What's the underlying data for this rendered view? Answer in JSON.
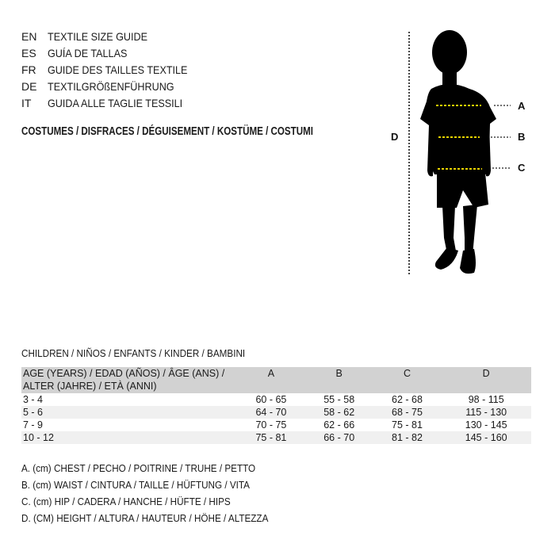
{
  "languages": [
    {
      "code": "EN",
      "label": "TEXTILE SIZE GUIDE"
    },
    {
      "code": "ES",
      "label": "GUÍA DE TALLAS"
    },
    {
      "code": "FR",
      "label": "GUIDE DES TAILLES TEXTILE"
    },
    {
      "code": "DE",
      "label": "TEXTILGRÖßENFÜHRUNG"
    },
    {
      "code": "IT",
      "label": "GUIDA ALLE TAGLIE TESSILI"
    }
  ],
  "heading": "COSTUMES / DISFRACES / DÉGUISEMENT / KOSTÜME / COSTUMI",
  "figure": {
    "labels": {
      "a": "A",
      "b": "B",
      "c": "C",
      "d": "D"
    },
    "measure_line_color": "#e6d200"
  },
  "table": {
    "title": "CHILDREN / NIÑOS / ENFANTS / KINDER / BAMBINI",
    "age_header_line1": "AGE (YEARS) / EDAD (AÑOS) / ÂGE (ANS) /",
    "age_header_line2": "ALTER (JAHRE) / ETÀ (ANNI)",
    "columns": [
      "A",
      "B",
      "C",
      "D"
    ],
    "rows": [
      {
        "age": "3 - 4",
        "a": "60 - 65",
        "b": "55 - 58",
        "c": "62 - 68",
        "d": "98 - 115"
      },
      {
        "age": "5 - 6",
        "a": "64 - 70",
        "b": "58 - 62",
        "c": "68 - 75",
        "d": "115 - 130"
      },
      {
        "age": "7 - 9",
        "a": "70 - 75",
        "b": "62 - 66",
        "c": "75 - 81",
        "d": "130 - 145"
      },
      {
        "age": "10 - 12",
        "a": "75 - 81",
        "b": "66 - 70",
        "c": "81 - 82",
        "d": "145 - 160"
      }
    ]
  },
  "legend": [
    "A. (cm) CHEST / PECHO / POITRINE / TRUHE / PETTO",
    "B. (cm) WAIST / CINTURA / TAILLE / HÜFTUNG / VITA",
    "C. (cm) HIP / CADERA / HANCHE / HÜFTE / HIPS",
    "D. (CM) HEIGHT / ALTURA / HAUTEUR / HÖHE / ALTEZZA"
  ]
}
